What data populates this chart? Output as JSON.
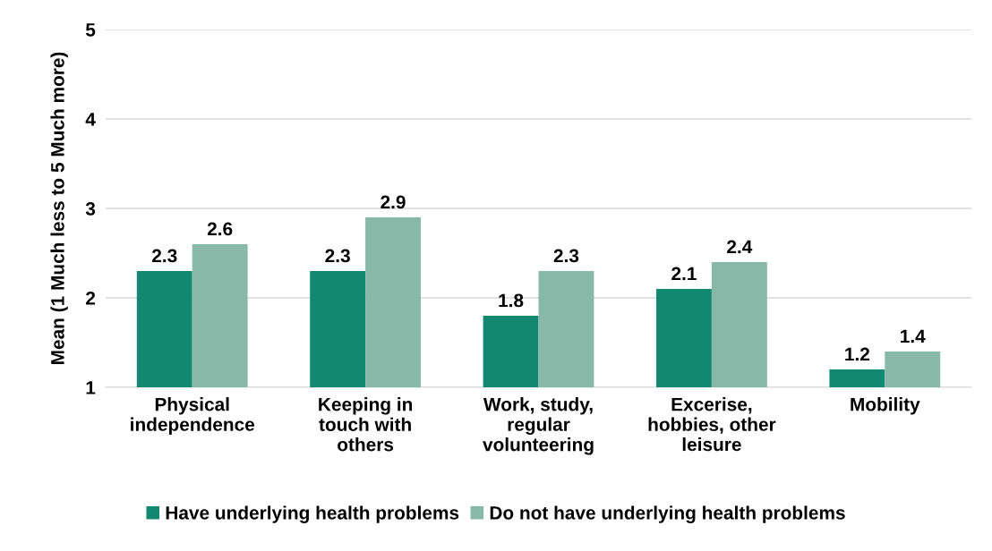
{
  "chart_data": {
    "type": "bar",
    "ylabel": "Mean (1 Much less to 5 Much more)",
    "categories": [
      "Physical\nindependence",
      "Keeping in\ntouch with\nothers",
      "Work, study,\nregular\nvolunteering",
      "Excerise,\nhobbies, other\nleisure",
      "Mobility"
    ],
    "series": [
      {
        "name": "Have underlying health problems",
        "color": "#138870",
        "values": [
          2.3,
          2.3,
          1.8,
          2.1,
          1.2
        ]
      },
      {
        "name": "Do not have underlying health problems",
        "color": "#87b8a8",
        "values": [
          2.6,
          2.9,
          2.3,
          2.4,
          1.4
        ]
      }
    ],
    "ylim": [
      1,
      5
    ],
    "yticks": [
      1,
      2,
      3,
      4,
      5
    ],
    "grid": "y",
    "legend": "bottom",
    "data_labels": true
  }
}
